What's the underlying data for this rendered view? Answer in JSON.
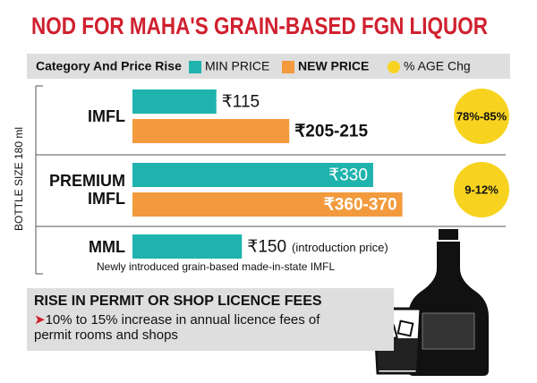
{
  "chart_data": {
    "type": "bar",
    "title": "NOD FOR MAHA'S GRAIN-BASED FGN LIQUOR",
    "legend_title": "Category And Price Rise",
    "y_label": "BOTTLE SIZE 180 ml",
    "categories": [
      "IMFL",
      "PREMIUM IMFL",
      "MML"
    ],
    "series": [
      {
        "name": "MIN PRICE",
        "color": "#1fb3ad",
        "values": [
          115,
          330,
          150
        ],
        "value_labels": [
          "₹115",
          "₹330",
          "₹150"
        ]
      },
      {
        "name": "NEW PRICE",
        "color": "#f29a3d",
        "values": [
          215,
          370,
          null
        ],
        "value_labels": [
          "₹205-215",
          "₹360-370",
          null
        ]
      },
      {
        "name": "% AGE Chg",
        "color": "#f7d320",
        "values": [
          85,
          12,
          null
        ],
        "value_labels": [
          "78%-85%",
          "9-12%",
          null
        ]
      }
    ],
    "annotations": [
      "(introduction price)",
      "Newly introduced grain-based made-in-state IMFL"
    ]
  },
  "notice": {
    "heading": "RISE IN PERMIT OR SHOP LICENCE FEES",
    "text": "10% to 15% increase in annual licence fees of permit rooms and shops"
  }
}
